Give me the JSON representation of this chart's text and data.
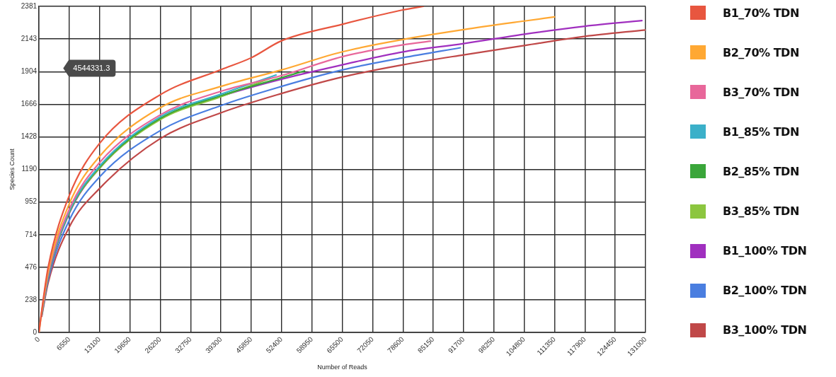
{
  "chart_data": {
    "type": "line",
    "xlabel": "Number of Reads",
    "ylabel": "Species Count",
    "xlim": [
      0,
      131000
    ],
    "xticks": [
      0,
      6550,
      13100,
      19650,
      26200,
      32750,
      39300,
      45850,
      52400,
      58950,
      65500,
      72050,
      78600,
      85150,
      91700,
      98250,
      104800,
      111350,
      117900,
      124450,
      131000
    ],
    "ylim": [
      0,
      2381
    ],
    "yticks": [
      0,
      238,
      476,
      714,
      952,
      1190,
      1428,
      1666,
      1904,
      2143,
      2381
    ],
    "grid": true,
    "legend": "right",
    "marker": "none",
    "line_style": "solid",
    "annotations": [
      "4544331.3"
    ],
    "series": [
      {
        "name": "B1_70% TDN",
        "color": "#e8563f",
        "x": [
          0,
          1000,
          2000,
          6550,
          13100,
          26200,
          39300,
          45850,
          52400,
          65500,
          78600,
          83000
        ],
        "values": [
          0,
          260,
          480,
          1000,
          1381,
          1736,
          1919,
          2006,
          2130,
          2250,
          2355,
          2381
        ]
      },
      {
        "name": "B2_70% TDN",
        "color": "#ffa833",
        "x": [
          0,
          600,
          2000,
          6550,
          13100,
          26200,
          39300,
          52400,
          65500,
          78600,
          91700,
          104800,
          111350
        ],
        "values": [
          0,
          150,
          450,
          940,
          1286,
          1641,
          1797,
          1917,
          2049,
          2139,
          2211,
          2274,
          2304
        ]
      },
      {
        "name": "B3_70% TDN",
        "color": "#e8679a",
        "x": [
          600,
          2000,
          6550,
          13100,
          26200,
          39300,
          52400,
          65500,
          78600,
          84570
        ],
        "values": [
          145,
          430,
          900,
          1241,
          1589,
          1761,
          1876,
          2014,
          2100,
          2127
        ]
      },
      {
        "name": "B1_85% TDN",
        "color": "#3bb0c9",
        "x": [
          600,
          2000,
          6550,
          13100,
          26200,
          39300,
          51200
        ],
        "values": [
          140,
          420,
          885,
          1215,
          1575,
          1740,
          1880
        ]
      },
      {
        "name": "B2_85% TDN",
        "color": "#3aa63a",
        "x": [
          600,
          2000,
          6550,
          13100,
          26200,
          39300,
          52400,
          57350
        ],
        "values": [
          138,
          415,
          880,
          1208,
          1563,
          1729,
          1860,
          1910
        ]
      },
      {
        "name": "B3_85% TDN",
        "color": "#8cc63f",
        "x": [
          600,
          2000,
          6550,
          13100,
          26200,
          39300,
          49900
        ],
        "values": [
          136,
          410,
          875,
          1200,
          1555,
          1722,
          1855
        ]
      },
      {
        "name": "B1_100% TDN",
        "color": "#a02fbf",
        "x": [
          600,
          2000,
          6550,
          13100,
          26200,
          39300,
          52400,
          65500,
          78600,
          91700,
          104800,
          117900,
          130200
        ],
        "values": [
          134,
          405,
          870,
          1200,
          1560,
          1725,
          1850,
          1954,
          2049,
          2109,
          2178,
          2236,
          2277
        ]
      },
      {
        "name": "B2_100% TDN",
        "color": "#4a7ee0",
        "x": [
          600,
          2000,
          6550,
          13100,
          26200,
          39300,
          52400,
          65500,
          78600,
          91000
        ],
        "values": [
          125,
          385,
          820,
          1136,
          1474,
          1657,
          1797,
          1917,
          2006,
          2079
        ]
      },
      {
        "name": "B3_100% TDN",
        "color": "#c04848",
        "x": [
          600,
          2000,
          6550,
          13100,
          26200,
          39300,
          52400,
          65500,
          78600,
          91700,
          104800,
          117900,
          131000
        ],
        "values": [
          118,
          365,
          770,
          1052,
          1416,
          1604,
          1745,
          1865,
          1954,
          2027,
          2095,
          2162,
          2209
        ]
      }
    ]
  }
}
